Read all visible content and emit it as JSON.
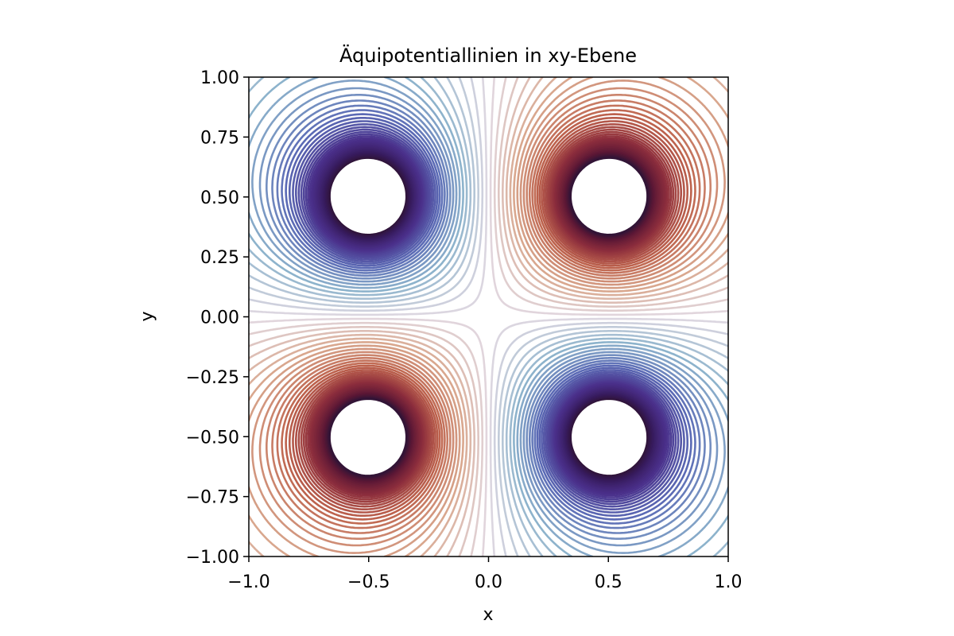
{
  "chart_data": {
    "type": "contour",
    "title": "Äquipotentiallinien in xy-Ebene",
    "xlabel": "x",
    "ylabel": "y",
    "xlim": [
      -1.0,
      1.0
    ],
    "ylim": [
      -1.0,
      1.0
    ],
    "aspect": "equal",
    "grid": false,
    "legend": "none",
    "xticks": [
      -1.0,
      -0.5,
      0.0,
      0.5,
      1.0
    ],
    "xtick_labels": [
      "−1.0",
      "−0.5",
      "0.0",
      "0.5",
      "1.0"
    ],
    "yticks": [
      -1.0,
      -0.75,
      -0.5,
      -0.25,
      0.0,
      0.25,
      0.5,
      0.75,
      1.0
    ],
    "ytick_labels": [
      "−1.00",
      "−0.75",
      "−0.50",
      "−0.25",
      "0.00",
      "0.25",
      "0.50",
      "0.75",
      "1.00"
    ],
    "colormap": "twilight_shifted",
    "charges": [
      {
        "x": 0.5,
        "y": 0.5,
        "sign": 1
      },
      {
        "x": -0.5,
        "y": -0.5,
        "sign": 1
      },
      {
        "x": -0.5,
        "y": 0.5,
        "sign": -1
      },
      {
        "x": 0.5,
        "y": -0.5,
        "sign": -1
      }
    ],
    "field": "V(x,y) = sum(sign_i / sqrt((x-x_i)^2 + (y-y_i)^2))",
    "contour_levels": 80,
    "level_range": [
      -5.0,
      5.0
    ]
  }
}
